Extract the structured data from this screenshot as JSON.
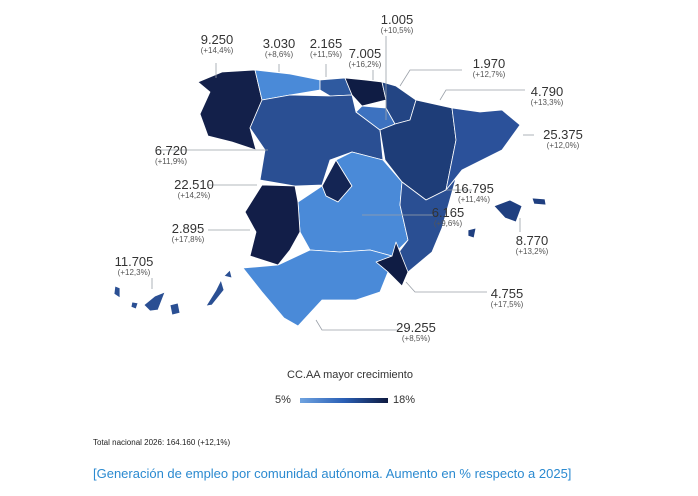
{
  "regions": [
    {
      "name": "galicia",
      "value": "9.250",
      "pct": "(+14,4%)",
      "color": "#13204a"
    },
    {
      "name": "asturias",
      "value": "3.030",
      "pct": "(+8,6%)",
      "color": "#4a8ad8"
    },
    {
      "name": "cantabria",
      "value": "2.165",
      "pct": "(+11,5%)",
      "color": "#2f5aa0"
    },
    {
      "name": "pais-vasco",
      "value": "7.005",
      "pct": "(+16,2%)",
      "color": "#0f1c44"
    },
    {
      "name": "la-rioja",
      "value": "1.005",
      "pct": "(+10,5%)",
      "color": "#3d72c0"
    },
    {
      "name": "navarra",
      "value": "1.970",
      "pct": "(+12,7%)",
      "color": "#234584"
    },
    {
      "name": "aragon",
      "value": "4.790",
      "pct": "(+13,3%)",
      "color": "#1e3d78"
    },
    {
      "name": "cataluna",
      "value": "25.375",
      "pct": "(+12,0%)",
      "color": "#2b519a"
    },
    {
      "name": "castilla-y-leon",
      "value": "6.720",
      "pct": "(+11,9%)",
      "color": "#2a4f93"
    },
    {
      "name": "madrid",
      "value": "22.510",
      "pct": "(+14,2%)",
      "color": "#142554"
    },
    {
      "name": "extremadura",
      "value": "2.895",
      "pct": "(+17,8%)",
      "color": "#121e48"
    },
    {
      "name": "comunitat-valenciana",
      "value": "16.795",
      "pct": "(+11,4%)",
      "color": "#2a4f93"
    },
    {
      "name": "castilla-la-mancha",
      "value": "6.165",
      "pct": "(+9,6%)",
      "color": "#4a8ad8"
    },
    {
      "name": "baleares",
      "value": "8.770",
      "pct": "(+13,2%)",
      "color": "#1f3f80"
    },
    {
      "name": "canarias",
      "value": "11.705",
      "pct": "(+12,3%)",
      "color": "#2a4f93"
    },
    {
      "name": "murcia",
      "value": "4.755",
      "pct": "(+17,5%)",
      "color": "#0f1c44"
    },
    {
      "name": "andalucia",
      "value": "29.255",
      "pct": "(+8,5%)",
      "color": "#4a8ad8"
    }
  ],
  "legend": {
    "title": "CC.AA mayor crecimiento",
    "min": "5%",
    "max": "18%",
    "color_min": "#6fa3e0",
    "color_max": "#0e1a40"
  },
  "total": "Total nacional 2026: 164.160 (+12,1%)",
  "caption": "[Generación de empleo por comunidad autónoma. Aumento en % respecto a 2025]"
}
